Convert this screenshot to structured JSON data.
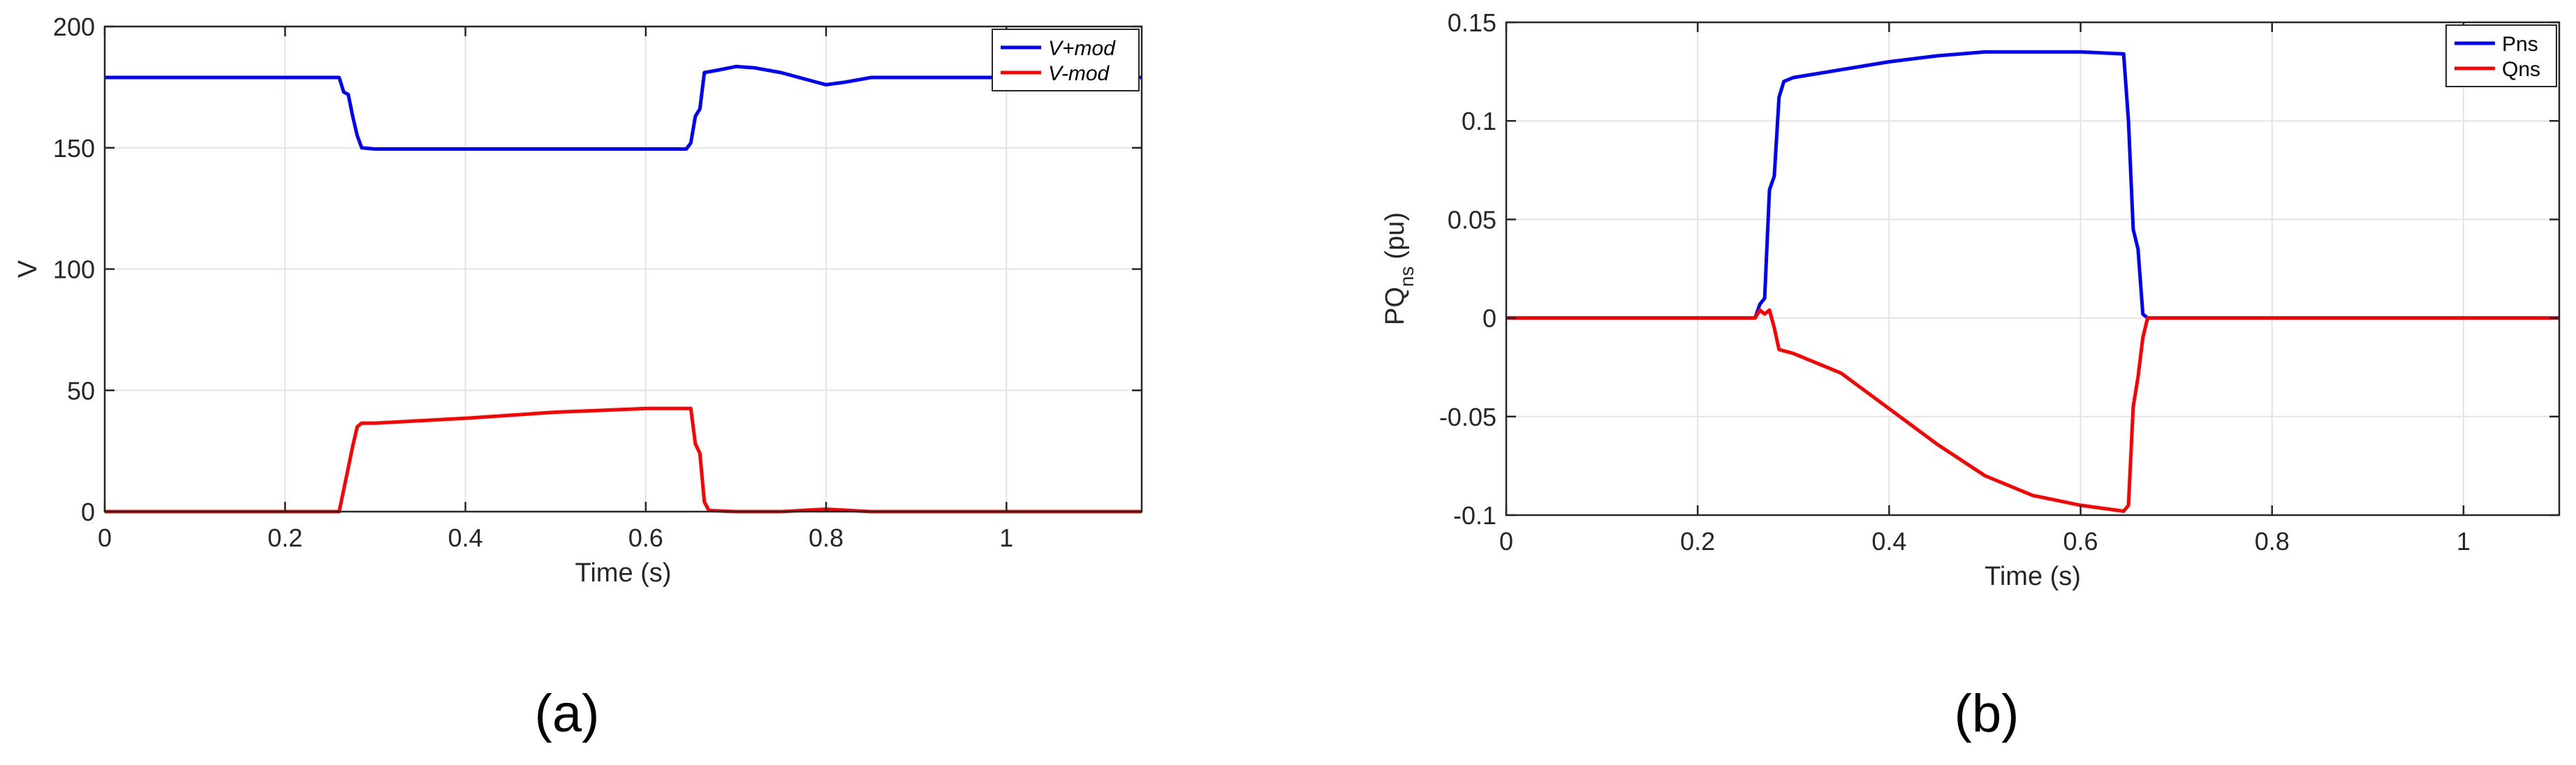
{
  "figure": {
    "panels": [
      {
        "caption": "(a)",
        "ylabel": "V",
        "xlabel": "Time (s)"
      },
      {
        "caption": "(b)",
        "ylabel": "PQ",
        "ylabel_sub": "ns",
        "ylabel_unit": "(pu)",
        "xlabel": "Time (s)"
      }
    ]
  },
  "chart_data": [
    {
      "type": "line",
      "title": "",
      "xlabel": "Time (s)",
      "ylabel": "V",
      "xlim": [
        0,
        1.15
      ],
      "ylim": [
        0,
        200
      ],
      "grid": true,
      "legend_position": "top-right",
      "x_ticks": [
        0,
        0.2,
        0.4,
        0.6,
        0.8,
        1
      ],
      "x_tick_labels": [
        "0",
        "0.2",
        "0.4",
        "0.6",
        "0.8",
        "1"
      ],
      "y_ticks": [
        0,
        50,
        100,
        150,
        200
      ],
      "y_tick_labels": [
        "0",
        "50",
        "100",
        "150",
        "200"
      ],
      "series": [
        {
          "name": "V+mod",
          "color": "#0000ff",
          "x": [
            0,
            0.2,
            0.26,
            0.265,
            0.27,
            0.275,
            0.28,
            0.285,
            0.3,
            0.4,
            0.5,
            0.6,
            0.645,
            0.65,
            0.655,
            0.66,
            0.665,
            0.68,
            0.7,
            0.72,
            0.75,
            0.78,
            0.8,
            0.82,
            0.85,
            0.9,
            1.0,
            1.15
          ],
          "y": [
            179,
            179,
            179,
            173,
            172,
            163,
            155,
            150,
            149.5,
            149.5,
            149.5,
            149.5,
            149.5,
            152,
            163,
            166,
            181,
            182,
            183.5,
            183,
            181,
            178,
            176,
            177,
            179,
            179,
            179,
            179
          ]
        },
        {
          "name": "V-mod",
          "color": "#ff0000",
          "x": [
            0,
            0.2,
            0.26,
            0.265,
            0.27,
            0.275,
            0.28,
            0.285,
            0.3,
            0.4,
            0.5,
            0.6,
            0.645,
            0.65,
            0.655,
            0.66,
            0.665,
            0.67,
            0.7,
            0.75,
            0.8,
            0.85,
            0.9,
            1.0,
            1.15
          ],
          "y": [
            0,
            0,
            0,
            9,
            18,
            27,
            35,
            36.5,
            36.5,
            38.5,
            41,
            42.5,
            42.5,
            42.5,
            28,
            24,
            4,
            0.5,
            0,
            0,
            1,
            0,
            0,
            0,
            0
          ]
        }
      ]
    },
    {
      "type": "line",
      "title": "",
      "xlabel": "Time (s)",
      "ylabel": "PQns (pu)",
      "xlim": [
        0,
        1.1
      ],
      "ylim": [
        -0.1,
        0.15
      ],
      "grid": true,
      "legend_position": "top-right",
      "x_ticks": [
        0,
        0.2,
        0.4,
        0.6,
        0.8,
        1
      ],
      "x_tick_labels": [
        "0",
        "0.2",
        "0.4",
        "0.6",
        "0.8",
        "1"
      ],
      "y_ticks": [
        -0.1,
        -0.05,
        0,
        0.05,
        0.1,
        0.15
      ],
      "y_tick_labels": [
        "-0.1",
        "-0.05",
        "0",
        "0.05",
        "0.1",
        "0.15"
      ],
      "series": [
        {
          "name": "Pns",
          "color": "#0000ff",
          "x": [
            0,
            0.2,
            0.26,
            0.265,
            0.27,
            0.275,
            0.28,
            0.285,
            0.29,
            0.3,
            0.35,
            0.4,
            0.45,
            0.5,
            0.55,
            0.6,
            0.645,
            0.65,
            0.655,
            0.66,
            0.665,
            0.67,
            0.7,
            0.8,
            0.9,
            1.0,
            1.1
          ],
          "y": [
            0,
            0,
            0,
            0.007,
            0.01,
            0.065,
            0.072,
            0.112,
            0.12,
            0.122,
            0.126,
            0.13,
            0.133,
            0.135,
            0.135,
            0.135,
            0.134,
            0.1,
            0.045,
            0.035,
            0.002,
            0,
            0,
            0,
            0,
            0,
            0
          ]
        },
        {
          "name": "Qns",
          "color": "#ff0000",
          "x": [
            0,
            0.2,
            0.26,
            0.265,
            0.27,
            0.275,
            0.28,
            0.285,
            0.3,
            0.35,
            0.4,
            0.45,
            0.5,
            0.55,
            0.6,
            0.645,
            0.65,
            0.655,
            0.66,
            0.665,
            0.67,
            0.7,
            0.8,
            0.9,
            1.0,
            1.1
          ],
          "y": [
            0,
            0,
            0,
            0.004,
            0.002,
            0.004,
            -0.005,
            -0.016,
            -0.018,
            -0.028,
            -0.046,
            -0.064,
            -0.08,
            -0.09,
            -0.095,
            -0.098,
            -0.095,
            -0.045,
            -0.03,
            -0.01,
            0,
            0,
            0,
            0,
            0,
            0
          ]
        }
      ]
    }
  ]
}
